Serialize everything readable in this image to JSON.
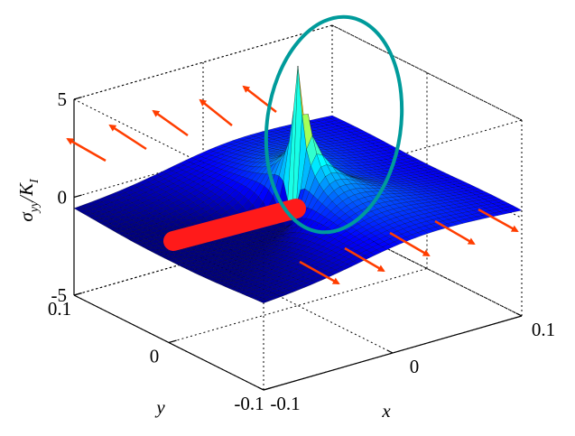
{
  "chart_data": {
    "type": "surface",
    "xlabel": "x",
    "ylabel": "y",
    "zlabel": [
      "σ",
      "yy",
      "/K",
      "I"
    ],
    "xlim": [
      -0.1,
      0.1
    ],
    "xticks": [
      -0.1,
      0,
      0.1
    ],
    "ylim": [
      -0.1,
      0.1
    ],
    "yticks": [
      -0.1,
      0,
      0.1
    ],
    "zlim": [
      -5,
      5
    ],
    "zticks": [
      -5,
      0,
      5
    ],
    "grid": true
  }
}
